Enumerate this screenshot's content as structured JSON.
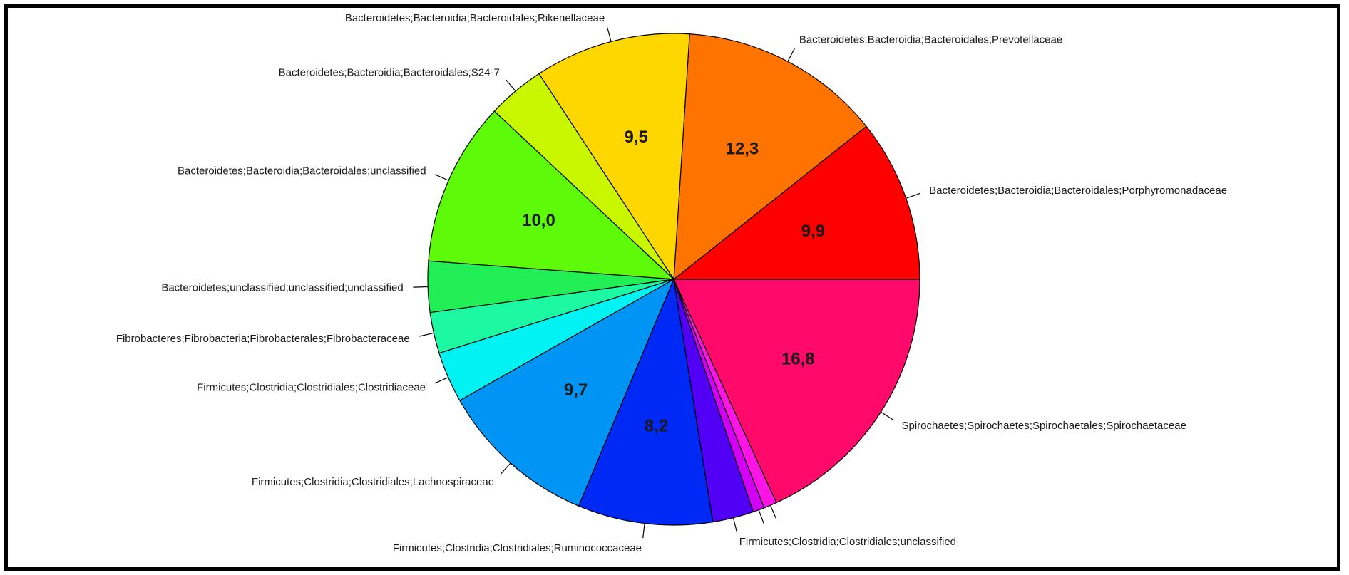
{
  "chart_data": {
    "type": "pie",
    "start_angle_deg": 0,
    "direction": "counterclockwise",
    "slices": [
      {
        "label": "Bacteroidetes;Bacteroidia;Bacteroidales;Porphyromonadaceae",
        "value": 9.9,
        "value_label": "9,9",
        "color": "#FF0000"
      },
      {
        "label": "Bacteroidetes;Bacteroidia;Bacteroidales;Prevotellaceae",
        "value": 12.3,
        "value_label": "12,3",
        "color": "#FF7400"
      },
      {
        "label": "Bacteroidetes;Bacteroidia;Bacteroidales;Rikenellaceae",
        "value": 9.5,
        "value_label": "9,5",
        "color": "#FFD700"
      },
      {
        "label": "Bacteroidetes;Bacteroidia;Bacteroidales;S24-7",
        "value": 3.5,
        "value_label": "",
        "color": "#C8F700"
      },
      {
        "label": "Bacteroidetes;Bacteroidia;Bacteroidales;unclassified",
        "value": 10.0,
        "value_label": "10,0",
        "color": "#5DFA0A"
      },
      {
        "label": "Bacteroidetes;unclassified;unclassified;unclassified",
        "value": 3.1,
        "value_label": "",
        "color": "#22EE55"
      },
      {
        "label": "Fibrobacteres;Fibrobacteria;Fibrobacterales;Fibrobacteraceae",
        "value": 2.5,
        "value_label": "",
        "color": "#1DF9A2"
      },
      {
        "label": "Firmicutes;Clostridia;Clostridiales;Clostridiaceae",
        "value": 3.1,
        "value_label": "",
        "color": "#00F3F3"
      },
      {
        "label": "Firmicutes;Clostridia;Clostridiales;Lachnospiraceae",
        "value": 9.7,
        "value_label": "9,7",
        "color": "#0095F5"
      },
      {
        "label": "Firmicutes;Clostridia;Clostridiales;Ruminococcaceae",
        "value": 8.2,
        "value_label": "8,2",
        "color": "#0029F5"
      },
      {
        "label": "Firmicutes;Clostridia;Clostridiales;unclassified",
        "value": 2.5,
        "value_label": "",
        "color": "#5200F5"
      },
      {
        "label": "",
        "value": 0.7,
        "value_label": "",
        "color": "#D200F5"
      },
      {
        "label": "",
        "value": 0.8,
        "value_label": "",
        "color": "#FF14E6"
      },
      {
        "label": "Spirochaetes;Spirochaetes;Spirochaetales;Spirochaetaceae",
        "value": 16.8,
        "value_label": "16,8",
        "color": "#FF0A6A"
      }
    ]
  }
}
